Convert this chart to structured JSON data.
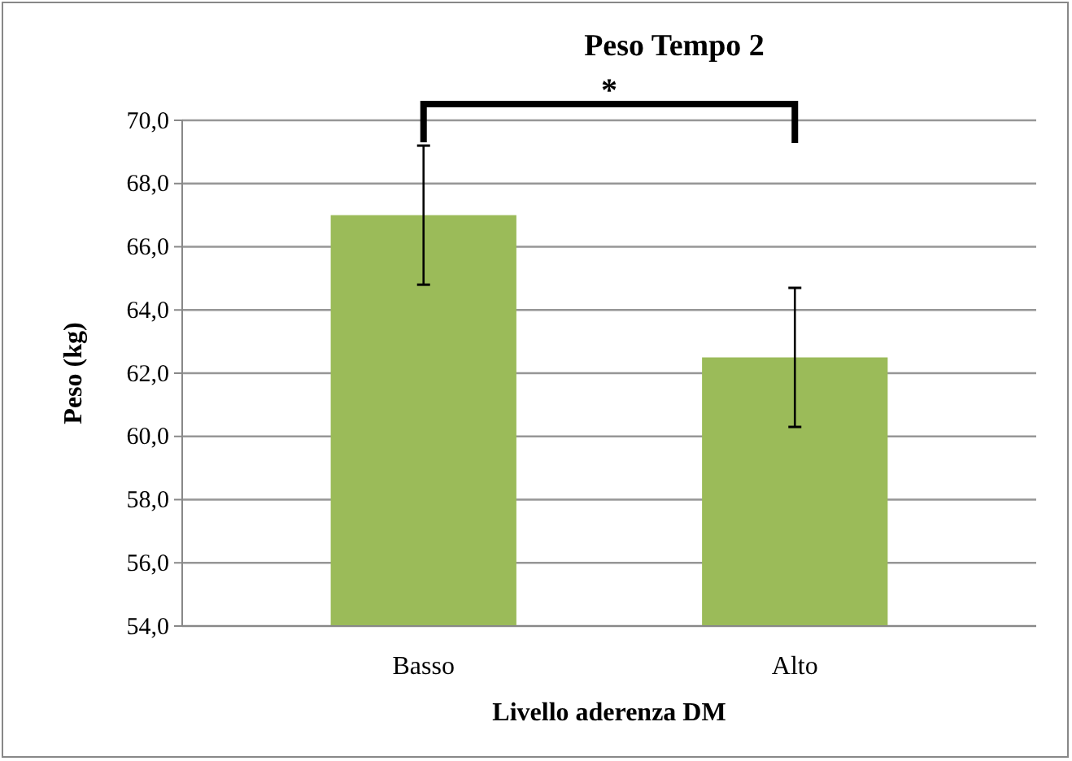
{
  "chart_data": {
    "type": "bar",
    "title": "Peso Tempo 2",
    "xlabel": "Livello aderenza DM",
    "ylabel": "Peso (kg)",
    "categories": [
      "Basso",
      "Alto"
    ],
    "values": [
      67.0,
      62.5
    ],
    "errors": [
      2.2,
      2.2
    ],
    "color": "#9bbb59",
    "ylim": [
      54,
      70
    ],
    "yticks": [
      {
        "value": 54,
        "label": "54,0"
      },
      {
        "value": 56,
        "label": "56,0"
      },
      {
        "value": 58,
        "label": "58,0"
      },
      {
        "value": 60,
        "label": "60,0"
      },
      {
        "value": 62,
        "label": "62,0"
      },
      {
        "value": 64,
        "label": "64,0"
      },
      {
        "value": 66,
        "label": "66,0"
      },
      {
        "value": 68,
        "label": "68,0"
      },
      {
        "value": 70,
        "label": "70,0"
      }
    ],
    "grid": "y",
    "annotations": [
      "*"
    ]
  }
}
